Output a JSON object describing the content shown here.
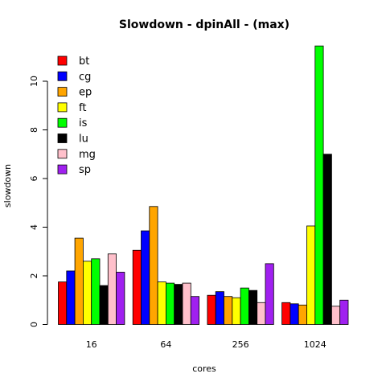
{
  "chart_data": {
    "type": "bar",
    "title": "Slowdown - dpinAll - (max)",
    "xlabel": "cores",
    "ylabel": "slowdown",
    "categories": [
      "16",
      "64",
      "256",
      "1024"
    ],
    "ylim": [
      0,
      12
    ],
    "yticks": [
      0,
      2,
      4,
      6,
      8,
      10
    ],
    "grid": false,
    "legend_position": "top-left",
    "series": [
      {
        "name": "bt",
        "color": "#FF0000",
        "values": [
          1.75,
          3.05,
          1.2,
          0.9
        ]
      },
      {
        "name": "cg",
        "color": "#0000FF",
        "values": [
          2.2,
          3.85,
          1.35,
          0.85
        ]
      },
      {
        "name": "ep",
        "color": "#FFA500",
        "values": [
          3.55,
          4.85,
          1.15,
          0.8
        ]
      },
      {
        "name": "ft",
        "color": "#FFFF00",
        "values": [
          2.6,
          1.75,
          1.1,
          4.05
        ]
      },
      {
        "name": "is",
        "color": "#00FF00",
        "values": [
          2.7,
          1.7,
          1.5,
          11.45
        ]
      },
      {
        "name": "lu",
        "color": "#000000",
        "values": [
          1.6,
          1.65,
          1.4,
          7.0
        ]
      },
      {
        "name": "mg",
        "color": "#FFC0CB",
        "values": [
          2.9,
          1.7,
          0.9,
          0.75
        ]
      },
      {
        "name": "sp",
        "color": "#A020F0",
        "values": [
          2.15,
          1.15,
          2.5,
          1.0
        ]
      }
    ]
  }
}
